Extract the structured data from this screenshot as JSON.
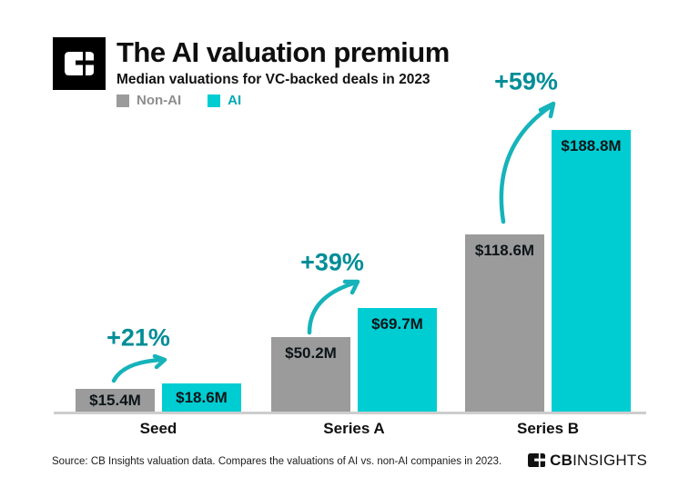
{
  "header": {
    "title": "The AI valuation premium",
    "subtitle": "Median valuations for VC-backed deals in 2023"
  },
  "chart_data": {
    "type": "bar",
    "title": "The AI valuation premium",
    "subtitle": "Median valuations for VC-backed deals in 2023",
    "unit": "USD millions",
    "categories": [
      "Seed",
      "Series A",
      "Series B"
    ],
    "series": [
      {
        "name": "Non-AI",
        "color": "#9b9b9b",
        "values": [
          15.4,
          50.2,
          118.6
        ],
        "labels": [
          "$15.4M",
          "$50.2M",
          "$118.6M"
        ]
      },
      {
        "name": "AI",
        "color": "#00cdd2",
        "values": [
          18.6,
          69.7,
          188.8
        ],
        "labels": [
          "$18.6M",
          "$69.7M",
          "$188.8M"
        ]
      }
    ],
    "pct_changes": [
      "+21%",
      "+39%",
      "+59%"
    ],
    "value_labels_position": "inside-top",
    "ylim": [
      0,
      200
    ],
    "grid": false,
    "legend_position": "top-left"
  },
  "colors": {
    "bar_non_ai": "#9b9b9b",
    "bar_ai": "#00cdd2",
    "pct_text": "#008d97",
    "arrow": "#16b3ba",
    "axis": "#cdcdcd",
    "legend_non_ai_text": "#8e8e8e",
    "legend_ai_text": "#00aab4",
    "text": "#111111",
    "logo_bg": "#000000"
  },
  "footer": {
    "source": "Source: CB Insights valuation data. Compares the valuations of AI vs. non-AI companies in 2023.",
    "brand_cb": "CB",
    "brand_insights": "INSIGHTS"
  }
}
